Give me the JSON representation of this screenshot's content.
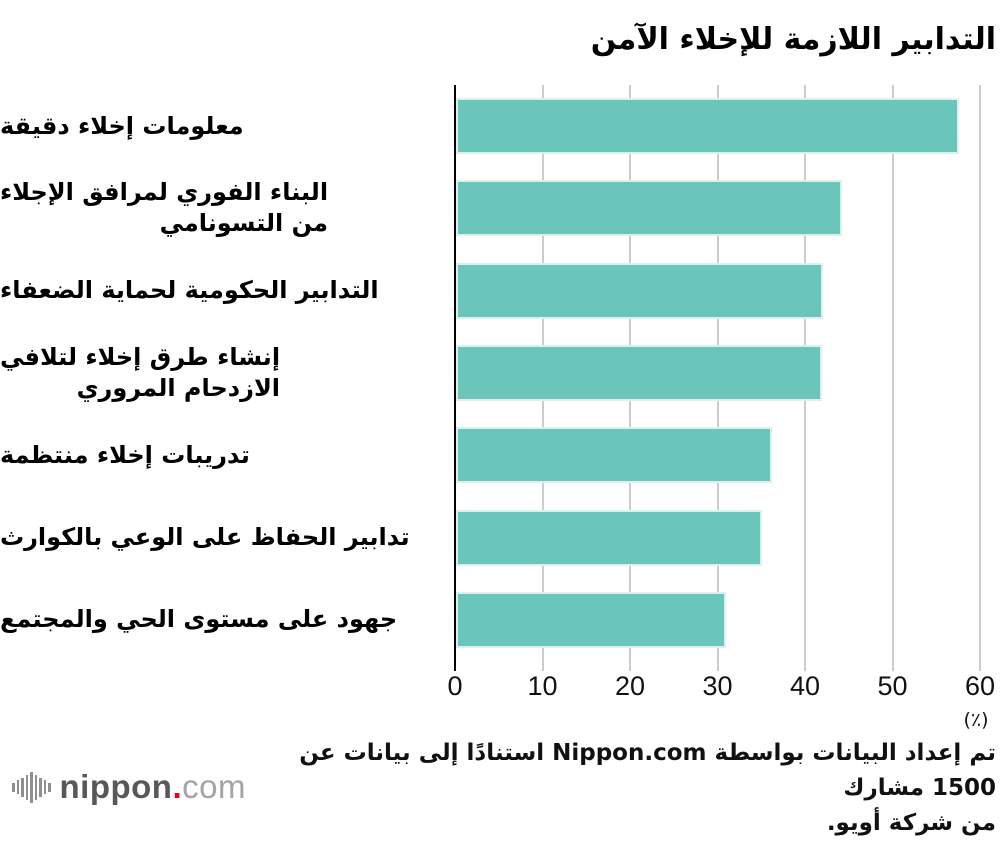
{
  "title": "التدابير اللازمة للإخلاء الآمن",
  "chart_data": {
    "type": "bar",
    "orientation": "horizontal",
    "title": "التدابير اللازمة للإخلاء الآمن",
    "categories": [
      "معلومات إخلاء دقيقة",
      "البناء الفوري لمرافق الإجلاء\nمن التسونامي",
      "التدابير الحكومية لحماية الضعفاء",
      "إنشاء طرق إخلاء لتلافي\nالازدحام المروري",
      "تدريبات إخلاء منتظمة",
      "تدابير الحفاظ على الوعي بالكوارث",
      "جهود على مستوى الحي والمجتمع"
    ],
    "values": [
      57.5,
      44.1,
      41.9,
      41.8,
      36.1,
      35.0,
      30.9
    ],
    "xlabel": "",
    "ylabel": "",
    "unit_label": "(٪)",
    "xlim": [
      0,
      60
    ],
    "xticks": [
      0,
      10,
      20,
      30,
      40,
      50,
      60
    ],
    "grid": true,
    "legend": "none",
    "bar_color": "#6ac5ba",
    "gridline_color": "#cccccc",
    "axis_color": "#000000"
  },
  "footer": {
    "source_line1": "تم إعداد البيانات بواسطة Nippon.com استنادًا إلى بيانات عن 1500 مشارك",
    "source_line2": "من شركة أويو.",
    "logo": {
      "nippon": "nippon",
      "dot": ".",
      "com": "com",
      "dot_color": "#e60012"
    }
  }
}
